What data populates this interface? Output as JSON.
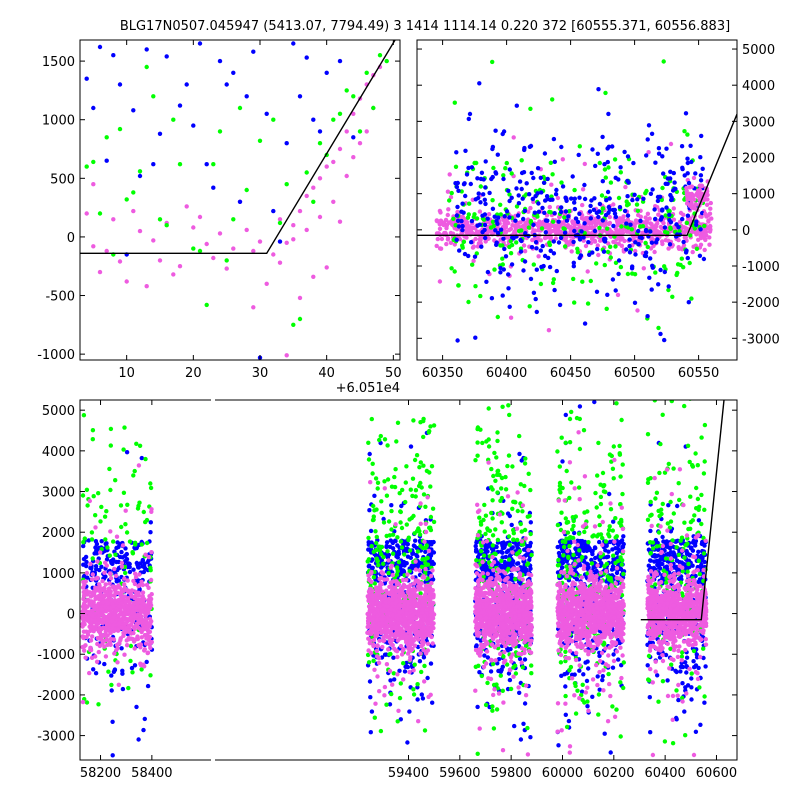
{
  "figure": {
    "title": "BLG17N0507.045947 (5413.07, 7794.49)   3 1414 1114.14 0.220 372 [60555.371, 60556.883]"
  },
  "colors": {
    "pink": "#ee5be0",
    "green": "#00ff00",
    "blue": "#0000ff",
    "model_line": "#000000"
  },
  "chart_data": [
    {
      "id": "top-left",
      "type": "scatter",
      "xlim": [
        3,
        51
      ],
      "ylim": [
        -1050,
        1680
      ],
      "xticks": [
        10,
        20,
        30,
        40,
        50
      ],
      "yticks": [
        -1000,
        -500,
        0,
        500,
        1000,
        1500
      ],
      "x_offset_label": "+6.051e4",
      "y_axis_side": "left",
      "model_line": {
        "x": [
          3,
          31,
          51
        ],
        "y": [
          -140,
          -140,
          1750
        ]
      },
      "series": [
        {
          "color_key": "pink",
          "points": [
            [
              5,
              -80
            ],
            [
              7,
              -120
            ],
            [
              9,
              -210
            ],
            [
              12,
              50
            ],
            [
              14,
              -30
            ],
            [
              16,
              120
            ],
            [
              18,
              -250
            ],
            [
              20,
              80
            ],
            [
              22,
              -60
            ],
            [
              24,
              30
            ],
            [
              26,
              -100
            ],
            [
              28,
              60
            ],
            [
              30,
              -40
            ],
            [
              32,
              -150
            ],
            [
              34,
              -50
            ],
            [
              35,
              100
            ],
            [
              36,
              220
            ],
            [
              37,
              350
            ],
            [
              38,
              420
            ],
            [
              39,
              500
            ],
            [
              40,
              600
            ],
            [
              41,
              640
            ],
            [
              42,
              750
            ],
            [
              43,
              900
            ],
            [
              44,
              1050
            ],
            [
              45,
              1180
            ],
            [
              46,
              1300
            ],
            [
              47,
              1380
            ],
            [
              48,
              1450
            ],
            [
              6,
              -300
            ],
            [
              10,
              -380
            ],
            [
              13,
              -420
            ],
            [
              8,
              150
            ],
            [
              11,
              220
            ],
            [
              15,
              -200
            ],
            [
              17,
              -320
            ],
            [
              19,
              260
            ],
            [
              21,
              170
            ],
            [
              23,
              -180
            ],
            [
              25,
              -270
            ],
            [
              27,
              300
            ],
            [
              29,
              -120
            ],
            [
              33,
              -220
            ],
            [
              36,
              -520
            ],
            [
              38,
              -340
            ],
            [
              40,
              -260
            ],
            [
              42,
              130
            ],
            [
              44,
              680
            ],
            [
              46,
              900
            ],
            [
              47,
              1100
            ],
            [
              45,
              800
            ],
            [
              43,
              520
            ],
            [
              41,
              300
            ],
            [
              39,
              170
            ],
            [
              37,
              60
            ],
            [
              35,
              -20
            ],
            [
              33,
              150
            ],
            [
              31,
              -400
            ],
            [
              29,
              -600
            ],
            [
              34,
              -1010
            ],
            [
              4,
              200
            ],
            [
              5,
              450
            ]
          ]
        },
        {
          "color_key": "green",
          "points": [
            [
              4,
              600
            ],
            [
              6,
              200
            ],
            [
              8,
              -150
            ],
            [
              10,
              320
            ],
            [
              12,
              560
            ],
            [
              14,
              1200
            ],
            [
              16,
              100
            ],
            [
              18,
              620
            ],
            [
              20,
              -100
            ],
            [
              22,
              -580
            ],
            [
              24,
              900
            ],
            [
              26,
              150
            ],
            [
              28,
              400
            ],
            [
              30,
              820
            ],
            [
              32,
              1000
            ],
            [
              34,
              450
            ],
            [
              36,
              -700
            ],
            [
              38,
              300
            ],
            [
              40,
              700
            ],
            [
              42,
              1050
            ],
            [
              44,
              1200
            ],
            [
              46,
              1400
            ],
            [
              48,
              1550
            ],
            [
              49,
              1500
            ],
            [
              47,
              1100
            ],
            [
              45,
              900
            ],
            [
              43,
              1250
            ],
            [
              41,
              1000
            ],
            [
              39,
              800
            ],
            [
              37,
              550
            ],
            [
              35,
              -750
            ],
            [
              33,
              120
            ],
            [
              13,
              1450
            ],
            [
              15,
              150
            ],
            [
              11,
              380
            ],
            [
              9,
              920
            ],
            [
              7,
              850
            ],
            [
              5,
              640
            ],
            [
              17,
              1000
            ],
            [
              21,
              -120
            ],
            [
              23,
              620
            ],
            [
              25,
              -200
            ],
            [
              27,
              1100
            ]
          ]
        },
        {
          "color_key": "blue",
          "points": [
            [
              4,
              1350
            ],
            [
              5,
              1100
            ],
            [
              6,
              1620
            ],
            [
              7,
              650
            ],
            [
              8,
              1550
            ],
            [
              9,
              1300
            ],
            [
              10,
              -150
            ],
            [
              11,
              1080
            ],
            [
              13,
              1600
            ],
            [
              15,
              880
            ],
            [
              16,
              1540
            ],
            [
              18,
              1120
            ],
            [
              19,
              1300
            ],
            [
              20,
              950
            ],
            [
              21,
              1650
            ],
            [
              22,
              620
            ],
            [
              23,
              420
            ],
            [
              24,
              1500
            ],
            [
              26,
              1400
            ],
            [
              28,
              1200
            ],
            [
              30,
              -1030
            ],
            [
              31,
              1050
            ],
            [
              33,
              -40
            ],
            [
              34,
              800
            ],
            [
              35,
              1650
            ],
            [
              36,
              1200
            ],
            [
              38,
              1000
            ],
            [
              40,
              1400
            ],
            [
              42,
              1500
            ],
            [
              44,
              850
            ],
            [
              12,
              520
            ],
            [
              14,
              620
            ],
            [
              25,
              1300
            ],
            [
              27,
              300
            ],
            [
              29,
              1580
            ],
            [
              32,
              220
            ],
            [
              37,
              1530
            ],
            [
              39,
              900
            ]
          ]
        }
      ]
    },
    {
      "id": "top-right",
      "type": "scatter",
      "xlim": [
        60330,
        60580
      ],
      "ylim": [
        -3600,
        5250
      ],
      "xticks": [
        60350,
        60400,
        60450,
        60500,
        60550
      ],
      "yticks": [
        -3000,
        -2000,
        -1000,
        0,
        1000,
        2000,
        3000,
        4000,
        5000
      ],
      "y_axis_side": "right",
      "model_line": {
        "x": [
          60330,
          60541,
          60580
        ],
        "y": [
          -150,
          -150,
          3200
        ]
      },
      "clusters": [
        {
          "color_key": "pink",
          "x_range": [
            60345,
            60560
          ],
          "y_center": 0,
          "y_spread": 700,
          "count": 900
        },
        {
          "color_key": "green",
          "x_range": [
            60355,
            60555
          ],
          "y_center": 200,
          "y_spread": 1700,
          "count": 260
        },
        {
          "color_key": "blue",
          "x_range": [
            60360,
            60555
          ],
          "y_center": 500,
          "y_spread": 1800,
          "count": 420
        },
        {
          "color_key": "pink",
          "x_range": [
            60540,
            60558
          ],
          "y_center": 900,
          "y_spread": 500,
          "count": 60
        }
      ]
    },
    {
      "id": "bottom",
      "type": "scatter",
      "xlim": [
        58120,
        60680
      ],
      "ylim": [
        -3600,
        5250
      ],
      "xticks": [
        58200,
        58400,
        59400,
        59600,
        59800,
        60000,
        60200,
        60400,
        60600
      ],
      "yticks": [
        -3000,
        -2000,
        -1000,
        0,
        1000,
        2000,
        3000,
        4000,
        5000
      ],
      "y_axis_side": "left",
      "model_line": {
        "x": [
          60305,
          60541,
          60630
        ],
        "y": [
          -150,
          -150,
          5300
        ]
      },
      "seasons": [
        {
          "x_range": [
            58130,
            58400
          ],
          "pink": 700,
          "green": 110,
          "blue": 260
        },
        {
          "x_range": [
            59240,
            59500
          ],
          "pink": 900,
          "green": 260,
          "blue": 420
        },
        {
          "x_range": [
            59660,
            59880
          ],
          "pink": 900,
          "green": 240,
          "blue": 450
        },
        {
          "x_range": [
            59980,
            60240
          ],
          "pink": 900,
          "green": 260,
          "blue": 460
        },
        {
          "x_range": [
            60330,
            60560
          ],
          "pink": 800,
          "green": 180,
          "blue": 420
        }
      ]
    }
  ]
}
